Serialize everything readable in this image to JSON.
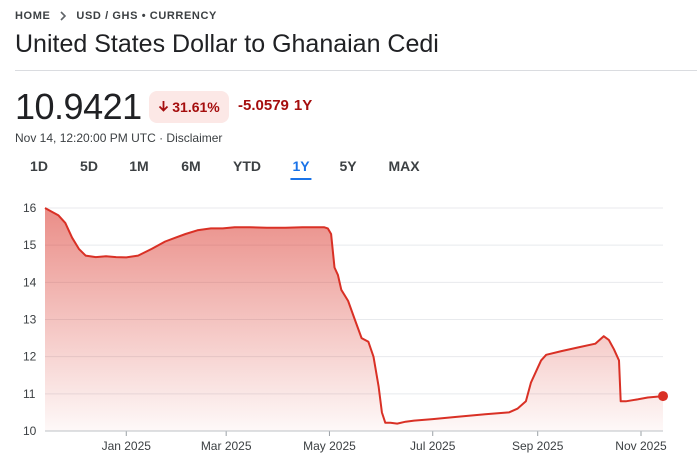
{
  "breadcrumb": {
    "home": "HOME",
    "pair": "USD / GHS • CURRENCY"
  },
  "title": "United States Dollar to Ghanaian Cedi",
  "quote": {
    "price": "10.9421",
    "change_percent": "31.61%",
    "change_abs": "-5.0579",
    "change_period": "1Y",
    "timestamp": "Nov 14, 12:20:00 PM UTC",
    "disclaimer": "Disclaimer",
    "timestamp_sep": " · "
  },
  "tabs": [
    {
      "label": "1D",
      "active": false
    },
    {
      "label": "5D",
      "active": false
    },
    {
      "label": "1M",
      "active": false
    },
    {
      "label": "6M",
      "active": false
    },
    {
      "label": "YTD",
      "active": false
    },
    {
      "label": "1Y",
      "active": true
    },
    {
      "label": "5Y",
      "active": false
    },
    {
      "label": "MAX",
      "active": false
    }
  ],
  "colors": {
    "negative": "#d93025",
    "negative_dark": "#a50e0e",
    "badge_bg": "#fce8e6",
    "active_tab": "#1a73e8",
    "line": "#d93025",
    "grid": "#e8eaed"
  },
  "icons": {
    "breadcrumb_separator": "chevron-right-icon",
    "change_direction": "arrow-down-icon"
  },
  "chart_data": {
    "type": "area",
    "ylim": [
      10,
      16
    ],
    "yticks": [
      10,
      11,
      12,
      13,
      14,
      15,
      16
    ],
    "xlim": [
      "2024-11-14",
      "2025-11-14"
    ],
    "xticks": [
      {
        "label": "Jan 2025",
        "date": "2025-01-01"
      },
      {
        "label": "Mar 2025",
        "date": "2025-03-01"
      },
      {
        "label": "May 2025",
        "date": "2025-05-01"
      },
      {
        "label": "Jul 2025",
        "date": "2025-07-01"
      },
      {
        "label": "Sep 2025",
        "date": "2025-09-01"
      },
      {
        "label": "Nov 2025",
        "date": "2025-11-01"
      }
    ],
    "grid": true,
    "legend": "none",
    "series": [
      {
        "x": [
          "2024-11-14",
          "2024-11-18",
          "2024-11-22",
          "2024-11-26",
          "2024-11-30",
          "2024-12-04",
          "2024-12-08",
          "2024-12-14",
          "2024-12-20",
          "2024-12-26",
          "2025-01-01",
          "2025-01-08",
          "2025-01-16",
          "2025-01-24",
          "2025-01-30",
          "2025-02-05",
          "2025-02-12",
          "2025-02-20",
          "2025-02-27",
          "2025-03-06",
          "2025-03-15",
          "2025-03-25",
          "2025-04-05",
          "2025-04-15",
          "2025-04-22",
          "2025-04-28",
          "2025-04-30",
          "2025-05-02",
          "2025-05-04",
          "2025-05-06",
          "2025-05-08",
          "2025-05-12",
          "2025-05-16",
          "2025-05-20",
          "2025-05-24",
          "2025-05-27",
          "2025-05-30",
          "2025-06-01",
          "2025-06-03",
          "2025-06-06",
          "2025-06-10",
          "2025-06-15",
          "2025-06-20",
          "2025-07-01",
          "2025-07-15",
          "2025-08-01",
          "2025-08-15",
          "2025-08-20",
          "2025-08-25",
          "2025-08-28",
          "2025-09-01",
          "2025-09-03",
          "2025-09-06",
          "2025-09-15",
          "2025-09-25",
          "2025-10-05",
          "2025-10-10",
          "2025-10-13",
          "2025-10-16",
          "2025-10-19",
          "2025-10-20",
          "2025-10-23",
          "2025-10-30",
          "2025-11-05",
          "2025-11-10",
          "2025-11-14"
        ],
        "y": [
          16.0,
          15.9,
          15.8,
          15.6,
          15.2,
          14.9,
          14.72,
          14.68,
          14.7,
          14.68,
          14.67,
          14.72,
          14.9,
          15.1,
          15.2,
          15.3,
          15.4,
          15.45,
          15.45,
          15.48,
          15.48,
          15.47,
          15.47,
          15.48,
          15.48,
          15.48,
          15.45,
          15.3,
          14.4,
          14.2,
          13.8,
          13.5,
          13.0,
          12.5,
          12.4,
          12.0,
          11.2,
          10.5,
          10.22,
          10.22,
          10.2,
          10.25,
          10.28,
          10.32,
          10.38,
          10.45,
          10.5,
          10.6,
          10.8,
          11.3,
          11.7,
          11.9,
          12.05,
          12.15,
          12.25,
          12.35,
          12.55,
          12.45,
          12.2,
          11.9,
          10.8,
          10.8,
          10.85,
          10.9,
          10.92,
          10.94
        ]
      }
    ]
  }
}
